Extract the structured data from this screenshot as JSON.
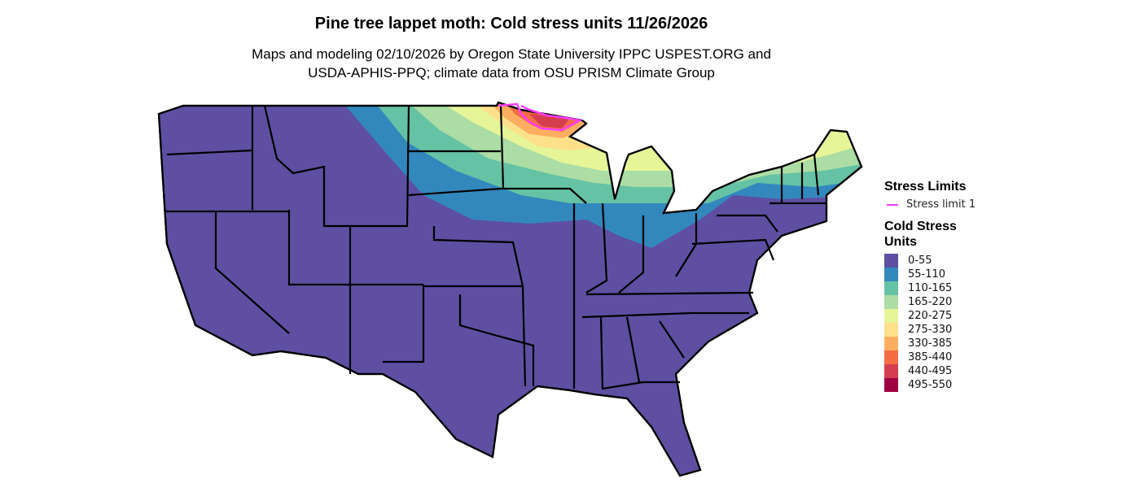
{
  "title": "Pine tree lappet moth: Cold stress units 11/26/2026",
  "subtitle_line1": "Maps and modeling 02/10/2026 by Oregon State University IPPC USPEST.ORG and",
  "subtitle_line2": "USDA-APHIS-PPQ; climate data from OSU PRISM Climate Group",
  "legend": {
    "limits_title": "Stress Limits",
    "limit_label": "Stress limit 1",
    "limit_color": "#ff3cff",
    "units_title": "Cold Stress Units",
    "bins": [
      {
        "label": "0-55",
        "color": "#5e4fa2"
      },
      {
        "label": "55-110",
        "color": "#3288bd"
      },
      {
        "label": "110-165",
        "color": "#66c2a5"
      },
      {
        "label": "165-220",
        "color": "#abdda4"
      },
      {
        "label": "220-275",
        "color": "#e6f598"
      },
      {
        "label": "275-330",
        "color": "#fee08b"
      },
      {
        "label": "330-385",
        "color": "#fdae61"
      },
      {
        "label": "385-440",
        "color": "#f46d43"
      },
      {
        "label": "440-495",
        "color": "#d53e4f"
      },
      {
        "label": "495-550",
        "color": "#9e0142"
      }
    ]
  }
}
